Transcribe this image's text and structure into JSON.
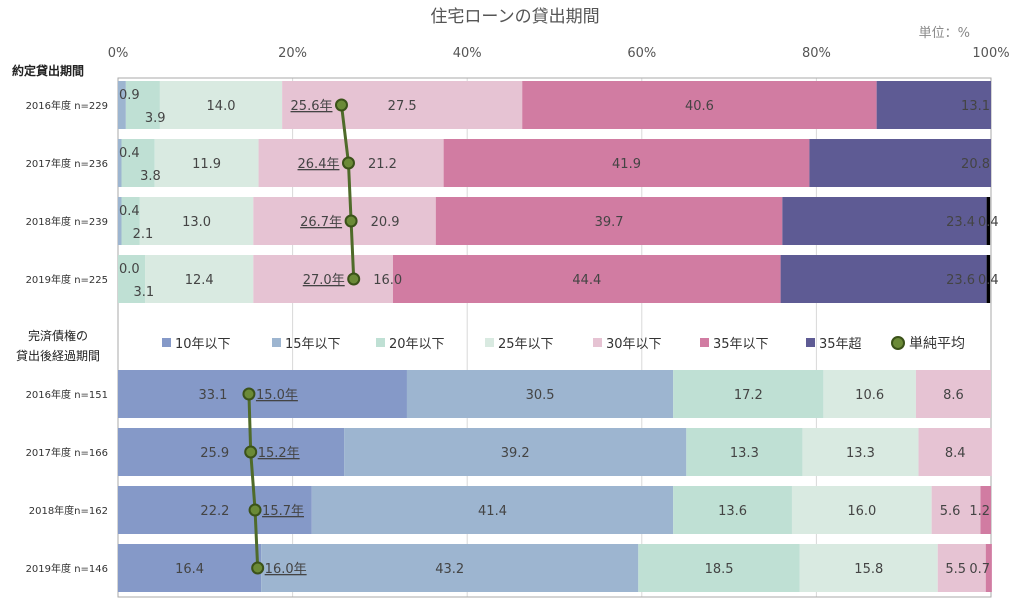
{
  "chart_data": {
    "type": "bar",
    "orientation": "horizontal-stacked-100",
    "title": "住宅ローンの貸出期間",
    "unit_label": "単位：%",
    "xlim": [
      0,
      100
    ],
    "x_ticks": [
      "0%",
      "20%",
      "40%",
      "60%",
      "80%",
      "100%"
    ],
    "legend": {
      "placement": "middle",
      "entries": [
        "10年以下",
        "15年以下",
        "20年以下",
        "25年以下",
        "30年以下",
        "35年以下",
        "35年超",
        "単純平均"
      ]
    },
    "colors": [
      "#8599c8",
      "#9db5d0",
      "#bfe0d4",
      "#d9eae1",
      "#e6c3d3",
      "#d17ca2",
      "#5e5b94"
    ],
    "marker_color": "#6b8a37",
    "line_color": "#4f6b2a",
    "groups": [
      {
        "label": "約定貸出期間",
        "rows": [
          {
            "label": "2016年度 n=229",
            "values": [
              0,
              0.9,
              3.9,
              14.0,
              27.5,
              40.6,
              13.1
            ],
            "labels": [
              "",
              "0.9",
              "3.9",
              "14.0",
              "27.5",
              "40.6",
              "13.1"
            ],
            "average": 25.6,
            "average_label": "25.6年"
          },
          {
            "label": "2017年度 n=236",
            "values": [
              0,
              0.4,
              3.8,
              11.9,
              21.2,
              41.9,
              20.8
            ],
            "labels": [
              "",
              "0.4",
              "3.8",
              "11.9",
              "21.2",
              "41.9",
              "20.8"
            ],
            "average": 26.4,
            "average_label": "26.4年"
          },
          {
            "label": "2018年度 n=239",
            "values": [
              0,
              0.4,
              2.1,
              13.0,
              20.9,
              39.7,
              23.4,
              0.4
            ],
            "labels": [
              "",
              "0.4",
              "2.1",
              "13.0",
              "20.9",
              "39.7",
              "23.4",
              "0.4"
            ],
            "average": 26.7,
            "average_label": "26.7年"
          },
          {
            "label": "2019年度 n=225",
            "values": [
              0,
              0.0,
              3.1,
              12.4,
              16.0,
              44.4,
              23.6,
              0.4
            ],
            "labels": [
              "",
              "0.0",
              "3.1",
              "12.4",
              "16.0",
              "44.4",
              "23.6",
              "0.4"
            ],
            "average": 27.0,
            "average_label": "27.0年"
          }
        ]
      },
      {
        "label": "完済債権の貸出後経過期間",
        "label_lines": [
          "完済債権の",
          "貸出後経過期間"
        ],
        "rows": [
          {
            "label": "2016年度 n=151",
            "values": [
              33.1,
              30.5,
              17.2,
              10.6,
              8.6
            ],
            "labels": [
              "33.1",
              "30.5",
              "17.2",
              "10.6",
              "8.6"
            ],
            "average": 15.0,
            "average_label": "15.0年"
          },
          {
            "label": "2017年度 n=166",
            "values": [
              25.9,
              39.2,
              13.3,
              13.3,
              8.4
            ],
            "labels": [
              "25.9",
              "39.2",
              "13.3",
              "13.3",
              "8.4"
            ],
            "average": 15.2,
            "average_label": "15.2年"
          },
          {
            "label": "2018年度n=162",
            "values": [
              22.2,
              41.4,
              13.6,
              16.0,
              5.6,
              1.2
            ],
            "labels": [
              "22.2",
              "41.4",
              "13.6",
              "16.0",
              "5.6",
              "1.2"
            ],
            "average": 15.7,
            "average_label": "15.7年"
          },
          {
            "label": "2019年度 n=146",
            "values": [
              16.4,
              43.2,
              18.5,
              15.8,
              5.5,
              0.7
            ],
            "labels": [
              "16.4",
              "43.2",
              "18.5",
              "15.8",
              "5.5",
              "0.7"
            ],
            "average": 16.0,
            "average_label": "16.0年"
          }
        ]
      }
    ]
  }
}
